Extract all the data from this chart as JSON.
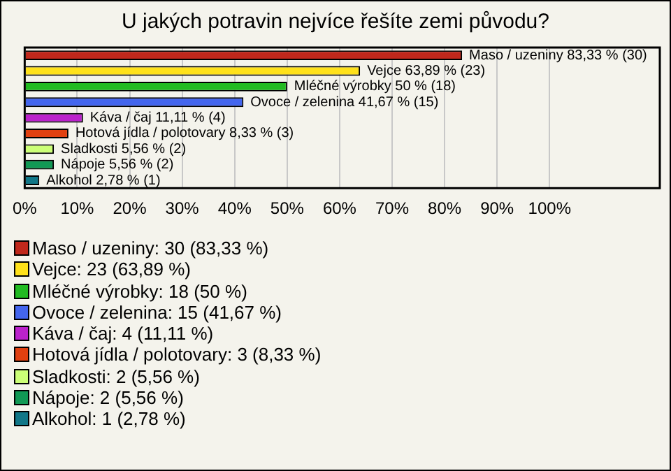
{
  "chart_data": {
    "type": "bar",
    "title": "U jakých potravin nejvíce řešíte zemi původu?",
    "categories": [
      null,
      null,
      null,
      null,
      null,
      null,
      null,
      null,
      null
    ],
    "orientation": "horizontal",
    "stacked": true,
    "xlim": [
      0,
      121
    ],
    "xticks": [
      {
        "value": 0,
        "label": "0%"
      },
      {
        "value": 10,
        "label": "10%"
      },
      {
        "value": 20,
        "label": "20%"
      },
      {
        "value": 30,
        "label": "30%"
      },
      {
        "value": 40,
        "label": "40%"
      },
      {
        "value": 50,
        "label": "50%"
      },
      {
        "value": 60,
        "label": "60%"
      },
      {
        "value": 70,
        "label": "70%"
      },
      {
        "value": 80,
        "label": "80%"
      },
      {
        "value": 90,
        "label": "90%"
      },
      {
        "value": 100,
        "label": "100%"
      }
    ],
    "grid": "x",
    "legend": "bottom",
    "tick_labels": "x",
    "series": [
      {
        "name": "Maso / uzeniny: 30 (83,33 %)",
        "color": "#c0281c",
        "values": [
          83.33,
          null,
          null,
          null,
          null,
          null,
          null,
          null,
          null
        ],
        "value_labels": [
          "Maso / uzeniny 83,33 % (30)",
          null,
          null,
          null,
          null,
          null,
          null,
          null,
          null
        ]
      },
      {
        "name": "Vejce: 23 (63,89 %)",
        "color": "#ffe11a",
        "values": [
          null,
          63.89,
          null,
          null,
          null,
          null,
          null,
          null,
          null
        ],
        "value_labels": [
          null,
          "Vejce 63,89 % (23)",
          null,
          null,
          null,
          null,
          null,
          null,
          null
        ]
      },
      {
        "name": "Mléčné výrobky: 18 (50 %)",
        "color": "#22bb22",
        "values": [
          null,
          null,
          50,
          null,
          null,
          null,
          null,
          null,
          null
        ],
        "value_labels": [
          null,
          null,
          "Mléčné výrobky 50 % (18)",
          null,
          null,
          null,
          null,
          null,
          null
        ]
      },
      {
        "name": "Ovoce / zelenina: 15 (41,67 %)",
        "color": "#4466ee",
        "values": [
          null,
          null,
          null,
          41.67,
          null,
          null,
          null,
          null,
          null
        ],
        "value_labels": [
          null,
          null,
          null,
          "Ovoce / zelenina 41,67 % (15)",
          null,
          null,
          null,
          null,
          null
        ]
      },
      {
        "name": "Káva / čaj: 4 (11,11 %)",
        "color": "#bb22cc",
        "values": [
          null,
          null,
          null,
          null,
          11.11,
          null,
          null,
          null,
          null
        ],
        "value_labels": [
          null,
          null,
          null,
          null,
          "Káva / čaj 11,11 % (4)",
          null,
          null,
          null,
          null
        ]
      },
      {
        "name": "Hotová jídla / polotovary: 3 (8,33 %)",
        "color": "#e04010",
        "values": [
          null,
          null,
          null,
          null,
          null,
          8.33,
          null,
          null,
          null
        ],
        "value_labels": [
          null,
          null,
          null,
          null,
          null,
          "Hotová jídla / polotovary 8,33 % (3)",
          null,
          null,
          null
        ]
      },
      {
        "name": "Sladkosti: 2 (5,56 %)",
        "color": "#ccff77",
        "values": [
          null,
          null,
          null,
          null,
          null,
          null,
          5.56,
          null,
          null
        ],
        "value_labels": [
          null,
          null,
          null,
          null,
          null,
          null,
          "Sladkosti 5,56 % (2)",
          null,
          null
        ]
      },
      {
        "name": "Nápoje: 2 (5,56 %)",
        "color": "#119955",
        "values": [
          null,
          null,
          null,
          null,
          null,
          null,
          null,
          5.56,
          null
        ],
        "value_labels": [
          null,
          null,
          null,
          null,
          null,
          null,
          null,
          "Nápoje 5,56 % (2)",
          null
        ]
      },
      {
        "name": "Alkohol: 1 (2,78 %)",
        "color": "#117788",
        "values": [
          null,
          null,
          null,
          null,
          null,
          null,
          null,
          null,
          2.78
        ],
        "value_labels": [
          null,
          null,
          null,
          null,
          null,
          null,
          null,
          null,
          "Alkohol 2,78 % (1)"
        ]
      }
    ]
  }
}
